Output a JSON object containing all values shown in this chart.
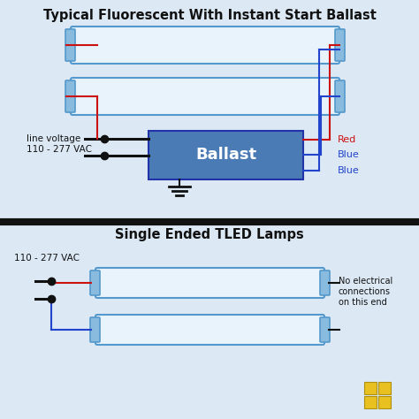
{
  "title_top": "Typical Fluorescent With Instant Start Ballast",
  "title_bottom": "Single Ended TLED Lamps",
  "bg_light": "#dce9f5",
  "bg_white": "#f8fafc",
  "tube_fill": "#e8f3fb",
  "tube_border": "#5599cc",
  "tube_end_color": "#88bbdd",
  "ballast_fill": "#4a7bb5",
  "ballast_text": "Ballast",
  "ballast_text_color": "#ffffff",
  "wire_red": "#cc1111",
  "wire_blue": "#2244cc",
  "wire_black": "#111111",
  "label_color": "#111111",
  "sep_color": "#111111",
  "note_text": "No electrical\nconnections\non this end",
  "line_voltage_text": "line voltage\n110 - 277 VAC",
  "vac_text_bottom": "110 - 277 VAC",
  "logo_color": "#e8c020",
  "logo_border": "#b09010"
}
